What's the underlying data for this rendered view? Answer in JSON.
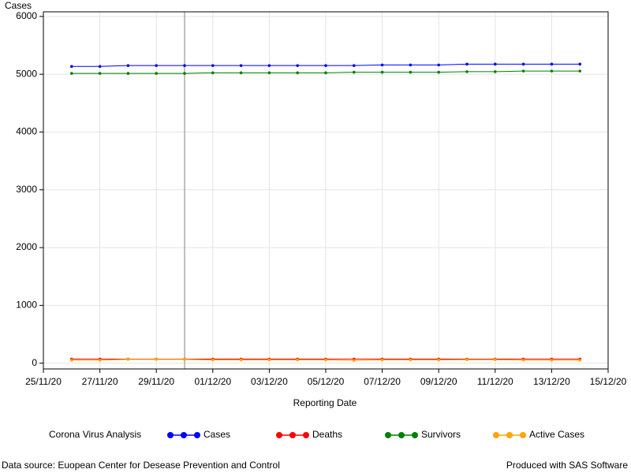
{
  "chart_data": {
    "type": "line",
    "y_label": "Cases",
    "x_label": "Reporting Date",
    "legend_title": "Corona Virus Analysis",
    "footnote_left": "Data source: Euopean Center for Desease Prevention and Control",
    "footnote_right": "Produced with SAS Software",
    "x": [
      "26/11/20",
      "27/11/20",
      "28/11/20",
      "29/11/20",
      "30/11/20",
      "01/12/20",
      "02/12/20",
      "03/12/20",
      "04/12/20",
      "05/12/20",
      "06/12/20",
      "07/12/20",
      "08/12/20",
      "09/12/20",
      "10/12/20",
      "11/12/20",
      "12/12/20",
      "13/12/20",
      "14/12/20"
    ],
    "series": [
      {
        "name": "Cases",
        "color": "#0000ff",
        "values": [
          5135,
          5135,
          5150,
          5150,
          5150,
          5150,
          5150,
          5150,
          5150,
          5150,
          5150,
          5160,
          5160,
          5160,
          5175,
          5175,
          5175,
          5175,
          5175
        ]
      },
      {
        "name": "Deaths",
        "color": "#ff0000",
        "values": [
          70,
          70,
          70,
          70,
          70,
          70,
          70,
          70,
          70,
          70,
          70,
          70,
          70,
          70,
          70,
          70,
          70,
          70,
          70
        ]
      },
      {
        "name": "Survivors",
        "color": "#008000",
        "values": [
          5015,
          5015,
          5015,
          5015,
          5015,
          5025,
          5025,
          5025,
          5025,
          5025,
          5035,
          5035,
          5035,
          5035,
          5045,
          5045,
          5055,
          5055,
          5055
        ]
      },
      {
        "name": "Active Cases",
        "color": "#ffa500",
        "values": [
          50,
          50,
          65,
          65,
          65,
          55,
          55,
          55,
          55,
          55,
          45,
          55,
          55,
          55,
          60,
          60,
          50,
          50,
          50
        ]
      }
    ],
    "xlim": [
      "25/11/20",
      "15/12/20"
    ],
    "xticks": [
      "25/11/20",
      "27/11/20",
      "29/11/20",
      "01/12/20",
      "03/12/20",
      "05/12/20",
      "07/12/20",
      "09/12/20",
      "11/12/20",
      "13/12/20",
      "15/12/20"
    ],
    "ylim": [
      -100,
      6080
    ],
    "yticks": [
      0,
      1000,
      2000,
      3000,
      4000,
      5000,
      6000
    ],
    "grid": true,
    "reference_x": "30/11/20"
  }
}
